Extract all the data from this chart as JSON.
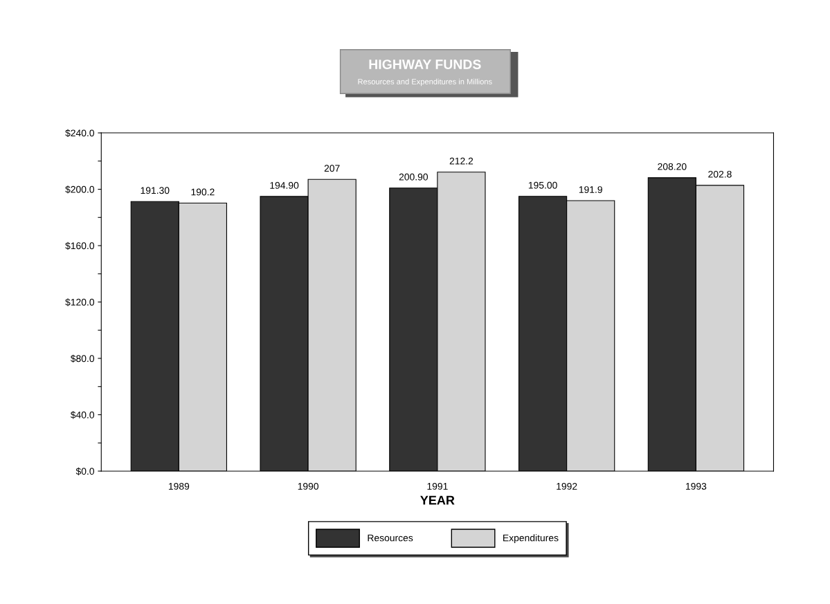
{
  "chart_data": {
    "type": "bar",
    "title": "HIGHWAY FUNDS",
    "subtitle": "Resources and Expenditures in Millions",
    "xlabel": "YEAR",
    "categories": [
      "1989",
      "1990",
      "1991",
      "1992",
      "1993"
    ],
    "series": [
      {
        "name": "Resources",
        "color": "#333333",
        "values": [
          191.3,
          194.9,
          200.9,
          195.0,
          208.2
        ],
        "value_labels": [
          "191.30",
          "194.90",
          "200.90",
          "195.00",
          "208.20"
        ]
      },
      {
        "name": "Expenditures",
        "color": "#d4d4d4",
        "values": [
          190.2,
          207,
          212.2,
          191.9,
          202.8
        ],
        "value_labels": [
          "190.2",
          "207",
          "212.2",
          "191.9",
          "202.8"
        ]
      }
    ],
    "ylim": [
      0,
      240
    ],
    "yticks": [
      {
        "value": 0,
        "label": "$0.0"
      },
      {
        "value": 20,
        "label": null
      },
      {
        "value": 40,
        "label": "$40.0"
      },
      {
        "value": 60,
        "label": null
      },
      {
        "value": 80,
        "label": "$80.0"
      },
      {
        "value": 100,
        "label": null
      },
      {
        "value": 120,
        "label": "$120.0"
      },
      {
        "value": 140,
        "label": null
      },
      {
        "value": 160,
        "label": "$160.0"
      },
      {
        "value": 180,
        "label": null
      },
      {
        "value": 200,
        "label": "$200.0"
      },
      {
        "value": 220,
        "label": null
      },
      {
        "value": 240,
        "label": "$240.0"
      }
    ],
    "grid": false,
    "legend": "bottom"
  }
}
